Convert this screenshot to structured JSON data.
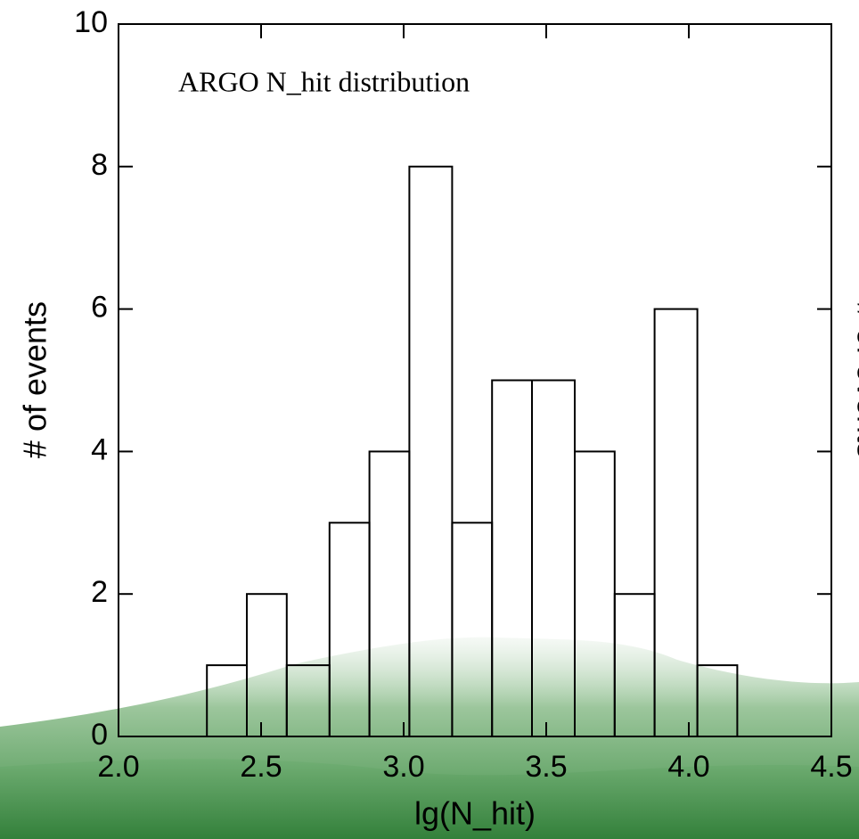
{
  "chart_data": {
    "type": "histogram",
    "title": "ARGO N_hit distribution",
    "xlabel": "lg(N_hit)",
    "ylabel": "# of events",
    "y2label": "# of events",
    "bins": [
      2.31,
      2.45,
      2.59,
      2.74,
      2.88,
      3.02,
      3.17,
      3.31,
      3.45,
      3.6,
      3.74,
      3.88,
      4.03,
      4.17
    ],
    "values": [
      1,
      2,
      1,
      3,
      4,
      8,
      3,
      5,
      5,
      4,
      2,
      6,
      1
    ],
    "color": "#000000",
    "xlim": [
      2,
      4.5
    ],
    "ylim": [
      0,
      10
    ],
    "xticks": [
      {
        "value": 2,
        "label": "2.0"
      },
      2.5,
      {
        "value": 3,
        "label": "3.0"
      },
      3.5,
      {
        "value": 4,
        "label": "4.0"
      },
      4.5
    ],
    "yticks": [
      0,
      2,
      4,
      6,
      8,
      10
    ]
  }
}
